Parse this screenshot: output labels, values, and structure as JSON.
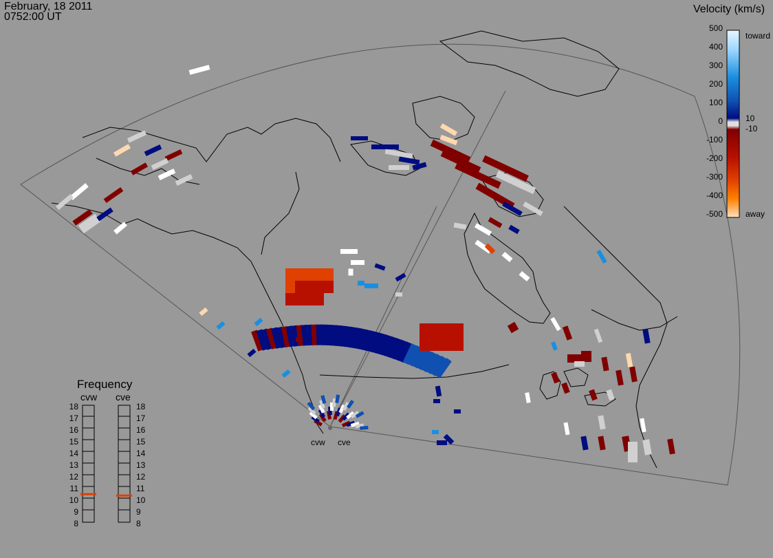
{
  "header": {
    "date": "February, 18 2011",
    "time": "0752:00 UT"
  },
  "colorbar": {
    "title": "Velocity (km/s)",
    "ticks": [
      "500",
      "400",
      "300",
      "200",
      "100",
      "10",
      "0",
      "-10",
      "-100",
      "-200",
      "-300",
      "-400",
      "-500"
    ],
    "toward_label": "toward",
    "away_label": "away",
    "colors": {
      "toward_light": "#d8f0ff",
      "toward_mid": "#1a8fe0",
      "toward_dark": "#000c80",
      "zero": "#d0d0d0",
      "away_dark": "#800000",
      "away_mid": "#e04000",
      "away_light": "#ffd8b0"
    }
  },
  "frequency": {
    "title": "Frequency",
    "radar_a": "cvw",
    "radar_b": "cve",
    "scale": [
      "18",
      "17",
      "16",
      "15",
      "14",
      "13",
      "12",
      "11",
      "10",
      "9",
      "8"
    ],
    "cvw_mhz": 10.9,
    "cve_mhz": 10.9,
    "marker_color": "#e04000"
  },
  "radars": {
    "west": "cvw",
    "east": "cve"
  },
  "map_colors": {
    "background": "#999999",
    "coast": "#000000",
    "fov": "#555555"
  }
}
